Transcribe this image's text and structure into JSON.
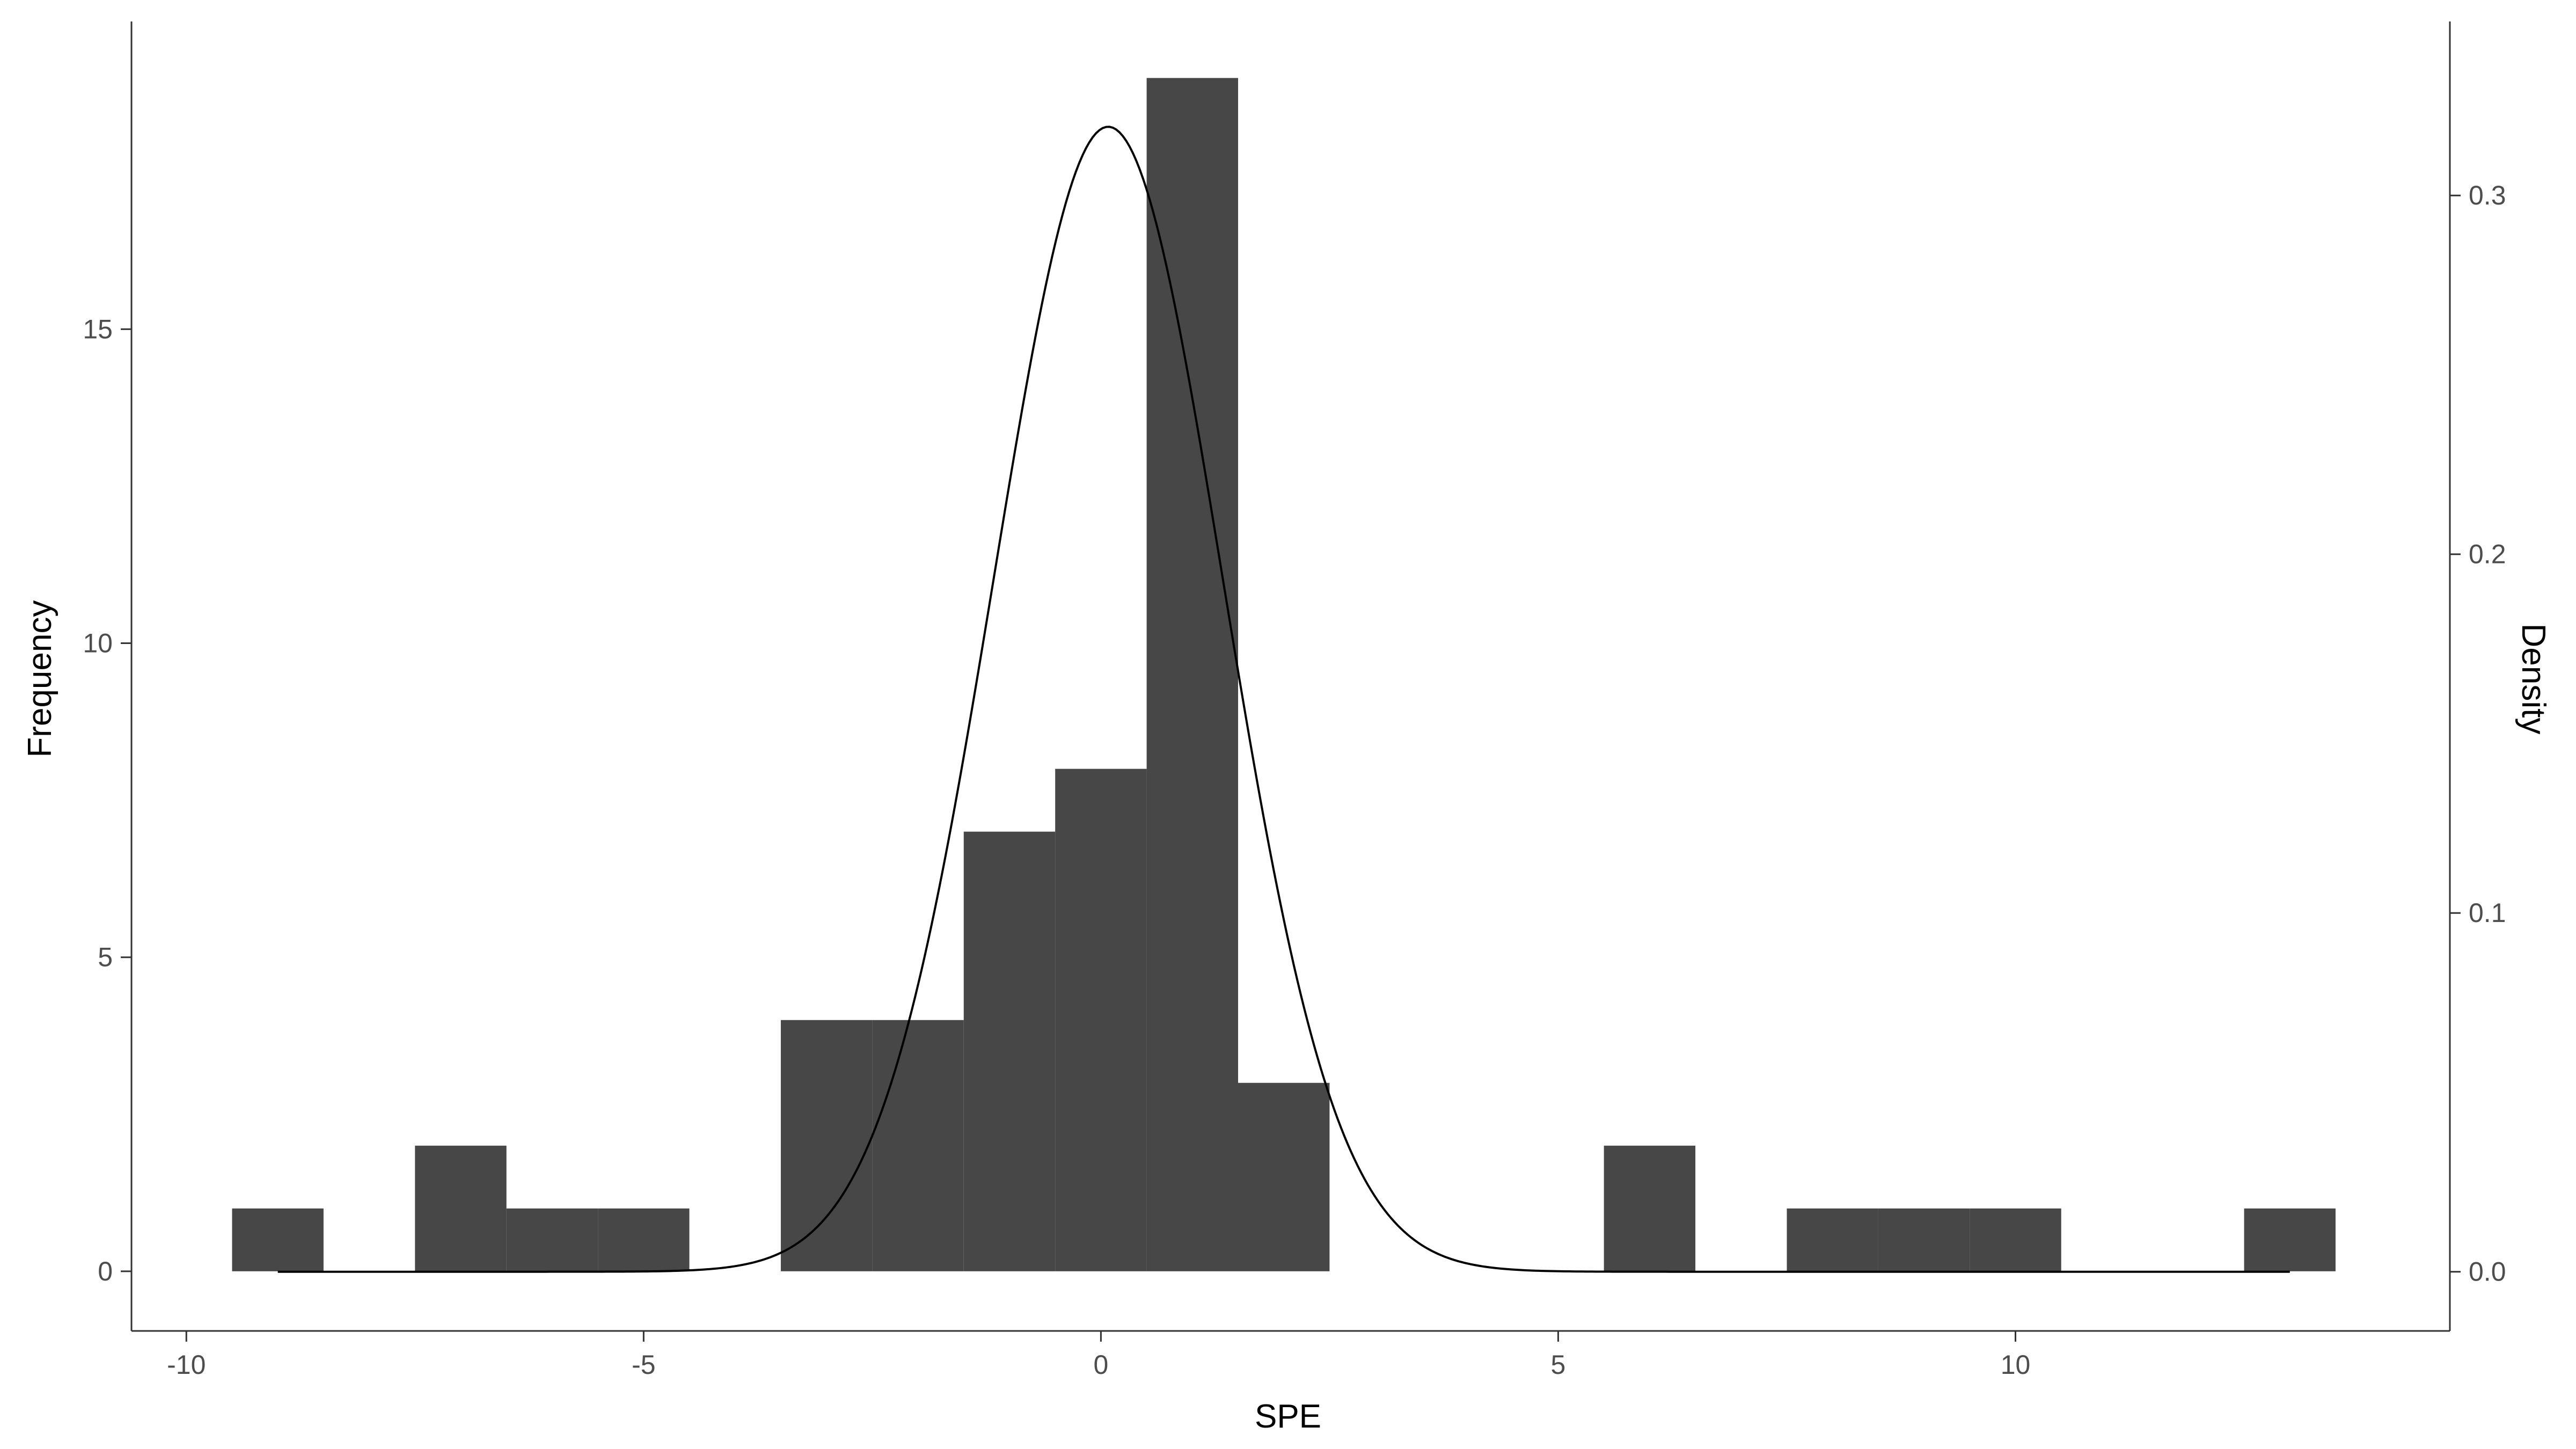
{
  "chart_data": {
    "type": "bar",
    "xlabel": "SPE",
    "ylabel": "Frequency",
    "y2label": "Density",
    "xlim": [
      -10.6,
      14.75
    ],
    "ylim": [
      -0.95,
      19.9
    ],
    "y2lim": [
      -0.0165,
      0.3485
    ],
    "bin_width": 1,
    "x_ticks": [
      -10,
      -5,
      0,
      5,
      10
    ],
    "x_tick_labels": [
      "-10",
      "-5",
      "0",
      "5",
      "10"
    ],
    "y_ticks": [
      0,
      5,
      10,
      15
    ],
    "y_tick_labels": [
      "0",
      "5",
      "10",
      "15"
    ],
    "y2_ticks": [
      0.0,
      0.1,
      0.2,
      0.3
    ],
    "y2_tick_labels": [
      "0.0",
      "0.1",
      "0.2",
      "0.3"
    ],
    "bins": [
      {
        "x_start": -9.5,
        "x_end": -8.5,
        "count": 1
      },
      {
        "x_start": -7.5,
        "x_end": -6.5,
        "count": 2
      },
      {
        "x_start": -6.5,
        "x_end": -5.5,
        "count": 1
      },
      {
        "x_start": -5.5,
        "x_end": -4.5,
        "count": 1
      },
      {
        "x_start": -3.5,
        "x_end": -2.5,
        "count": 4
      },
      {
        "x_start": -2.5,
        "x_end": -1.5,
        "count": 4
      },
      {
        "x_start": -1.5,
        "x_end": -0.5,
        "count": 7
      },
      {
        "x_start": -0.5,
        "x_end": 0.5,
        "count": 8
      },
      {
        "x_start": 0.5,
        "x_end": 1.5,
        "count": 19
      },
      {
        "x_start": 1.5,
        "x_end": 2.5,
        "count": 3
      },
      {
        "x_start": 5.5,
        "x_end": 6.5,
        "count": 2
      },
      {
        "x_start": 7.5,
        "x_end": 8.5,
        "count": 1
      },
      {
        "x_start": 8.5,
        "x_end": 9.5,
        "count": 1
      },
      {
        "x_start": 9.5,
        "x_end": 10.5,
        "count": 1
      },
      {
        "x_start": 12.5,
        "x_end": 13.5,
        "count": 1
      }
    ],
    "density_curve": {
      "distribution": "normal",
      "mean": 0.08,
      "sd": 1.25,
      "x_range": [
        -9,
        13
      ]
    },
    "grid": false,
    "colors": {
      "bar_fill": "#474747",
      "curve": "#000000",
      "axis": "#333333"
    }
  }
}
